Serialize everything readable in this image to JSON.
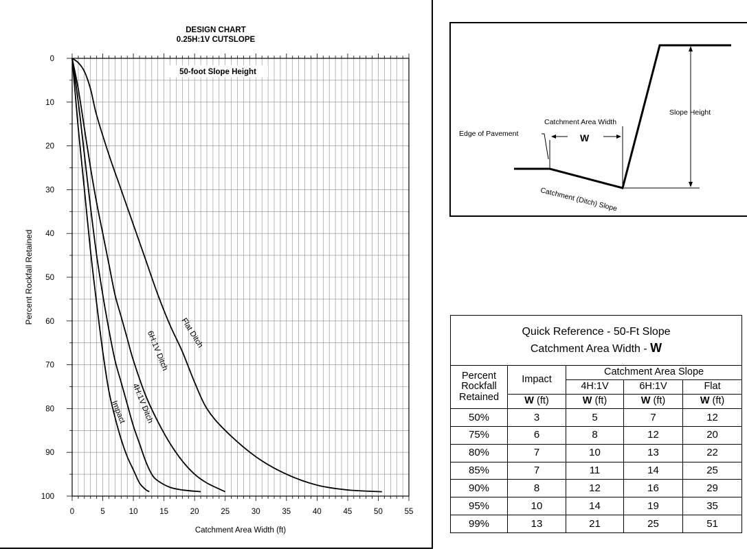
{
  "chart_data": {
    "type": "line",
    "title": "DESIGN CHART",
    "subtitle": "0.25H:1V CUTSLOPE",
    "annotation": "50-foot Slope Height",
    "xlabel": "Catchment Area Width (ft)",
    "ylabel": "Percent Rockfall Retained",
    "xlim": [
      0,
      55
    ],
    "ylim": [
      0,
      100
    ],
    "y_inverted": true,
    "x_ticks": [
      "0",
      "5",
      "10",
      "15",
      "20",
      "25",
      "30",
      "35",
      "40",
      "45",
      "50",
      "55"
    ],
    "y_ticks": [
      "0",
      "10",
      "20",
      "30",
      "40",
      "50",
      "60",
      "70",
      "80",
      "90",
      "100"
    ],
    "grid": true,
    "series": [
      {
        "name": "Impact",
        "x": [
          0,
          0.5,
          1,
          2,
          3,
          4,
          5,
          6,
          7,
          8,
          9,
          10,
          11,
          12,
          12.6
        ],
        "y": [
          0,
          8,
          16,
          30,
          44,
          56,
          67,
          76,
          82,
          87,
          91,
          94,
          97,
          98.5,
          99
        ]
      },
      {
        "name": "4H:1V Ditch",
        "x": [
          0,
          1,
          2,
          3,
          4,
          5,
          6,
          7,
          8,
          9,
          10,
          11,
          12,
          13,
          14,
          16,
          18,
          21
        ],
        "y": [
          0,
          10,
          22,
          34,
          45,
          54,
          62,
          69,
          74,
          79,
          84,
          88,
          92,
          95,
          96.5,
          98,
          98.6,
          99
        ]
      },
      {
        "name": "6H:1V Ditch",
        "x": [
          0,
          1,
          2,
          3,
          4,
          5,
          6,
          7,
          8,
          9,
          10,
          12,
          14,
          16,
          18,
          20,
          22,
          25
        ],
        "y": [
          0,
          7,
          16,
          25,
          33,
          40,
          47,
          54,
          59,
          64,
          69,
          77,
          83,
          88,
          92,
          95,
          97,
          99
        ]
      },
      {
        "name": "Flat Ditch",
        "x": [
          0,
          1,
          2,
          3,
          4,
          6,
          8,
          10,
          12,
          14,
          16,
          18,
          20,
          22,
          25,
          30,
          35,
          40,
          45,
          50.6
        ],
        "y": [
          0,
          1,
          3,
          7,
          13,
          22,
          30,
          38,
          46,
          54,
          61,
          67,
          74,
          80,
          85,
          91,
          95,
          97.5,
          98.6,
          99
        ]
      }
    ]
  },
  "diagram": {
    "edge_of_pavement": "Edge of Pavement",
    "catchment_area_width": "Catchment Area Width",
    "w_symbol": "W",
    "slope_height": "Slope Height",
    "catchment_slope": "Catchment (Ditch) Slope"
  },
  "table": {
    "title_line1": "Quick Reference - 50-Ft Slope",
    "title_line2": "Catchment Area Width - ",
    "title_w": "W",
    "col_percent": [
      "Percent",
      "Rockfall",
      "Retained"
    ],
    "col_impact": "Impact",
    "col_group": "Catchment Area Slope",
    "sub_cols": [
      "4H:1V",
      "6H:1V",
      "Flat"
    ],
    "unit_w": "W",
    "unit_ft": "(ft)",
    "rows": [
      [
        "50%",
        "3",
        "5",
        "7",
        "12"
      ],
      [
        "75%",
        "6",
        "8",
        "12",
        "20"
      ],
      [
        "80%",
        "7",
        "10",
        "13",
        "22"
      ],
      [
        "85%",
        "7",
        "11",
        "14",
        "25"
      ],
      [
        "90%",
        "8",
        "12",
        "16",
        "29"
      ],
      [
        "95%",
        "10",
        "14",
        "19",
        "35"
      ],
      [
        "99%",
        "13",
        "21",
        "25",
        "51"
      ]
    ]
  }
}
